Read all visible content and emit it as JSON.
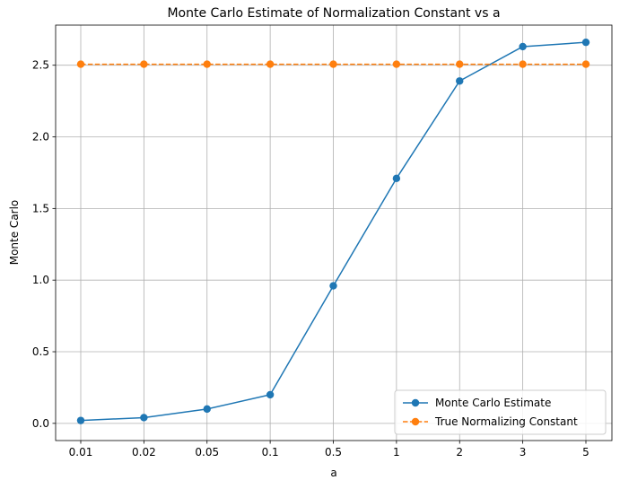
{
  "chart_data": {
    "type": "line",
    "title": "Monte Carlo Estimate of Normalization Constant vs a",
    "xlabel": "a",
    "ylabel": "Monte Carlo",
    "categories": [
      "0.01",
      "0.02",
      "0.05",
      "0.1",
      "0.5",
      "1",
      "2",
      "3",
      "5"
    ],
    "ylim": [
      -0.12,
      2.78
    ],
    "yticks": [
      "0.0",
      "0.5",
      "1.0",
      "1.5",
      "2.0",
      "2.5"
    ],
    "grid": true,
    "legend_position": "bottom-right",
    "series": [
      {
        "name": "Monte Carlo Estimate",
        "values": [
          0.02,
          0.04,
          0.1,
          0.2,
          0.96,
          1.71,
          2.39,
          2.63,
          2.66
        ],
        "color": "#1f77b4",
        "linestyle": "solid",
        "marker": "circle"
      },
      {
        "name": "True Normalizing Constant",
        "values": [
          2.507,
          2.507,
          2.507,
          2.507,
          2.507,
          2.507,
          2.507,
          2.507,
          2.507
        ],
        "color": "#ff7f0e",
        "linestyle": "dashed",
        "marker": "circle"
      }
    ]
  }
}
